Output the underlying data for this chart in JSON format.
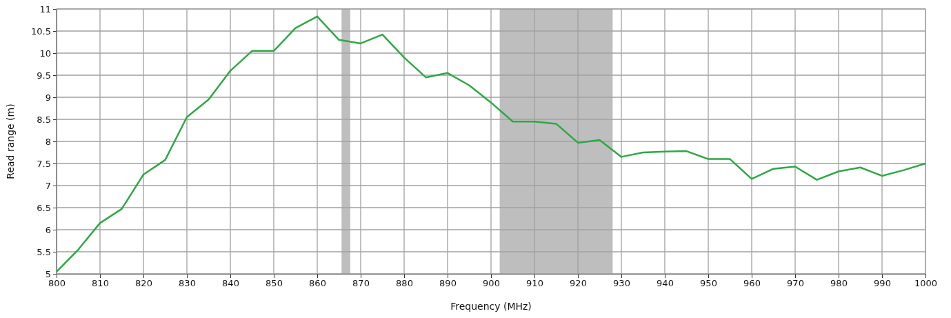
{
  "chart_data": {
    "type": "line",
    "xlabel": "Frequency (MHz)",
    "ylabel": "Read range (m)",
    "x": [
      800,
      805,
      810,
      815,
      820,
      825,
      830,
      835,
      840,
      845,
      850,
      855,
      860,
      865,
      870,
      875,
      880,
      885,
      890,
      895,
      900,
      905,
      910,
      915,
      920,
      925,
      930,
      935,
      940,
      945,
      950,
      955,
      960,
      965,
      970,
      975,
      980,
      985,
      990,
      995,
      1000
    ],
    "series": [
      {
        "color": "#2ea844",
        "values": [
          5.05,
          5.55,
          6.15,
          6.47,
          7.25,
          7.58,
          8.55,
          8.95,
          9.6,
          10.05,
          10.05,
          10.57,
          10.83,
          10.3,
          10.22,
          10.42,
          9.9,
          9.45,
          9.55,
          9.27,
          8.88,
          8.45,
          8.45,
          8.4,
          7.97,
          8.03,
          7.65,
          7.75,
          7.77,
          7.78,
          7.6,
          7.6,
          7.15,
          7.38,
          7.43,
          7.13,
          7.32,
          7.41,
          7.22,
          7.35,
          7.5
        ]
      }
    ],
    "xlim": [
      800,
      1000
    ],
    "xticks": [
      800,
      810,
      820,
      830,
      840,
      850,
      860,
      870,
      880,
      890,
      900,
      910,
      920,
      930,
      940,
      950,
      960,
      970,
      980,
      990,
      1000
    ],
    "ylim": [
      5,
      11
    ],
    "yticks": [
      5,
      5.5,
      6,
      6.5,
      7,
      7.5,
      8,
      8.5,
      9,
      9.5,
      10,
      10.5,
      11
    ],
    "bands": [
      {
        "axis": "x",
        "from": 865.6,
        "to": 867.6,
        "color": "#bebebe"
      },
      {
        "axis": "x",
        "from": 902,
        "to": 928,
        "color": "#bebebe"
      }
    ],
    "grid": true,
    "marker": "none",
    "line_style": "solid"
  }
}
